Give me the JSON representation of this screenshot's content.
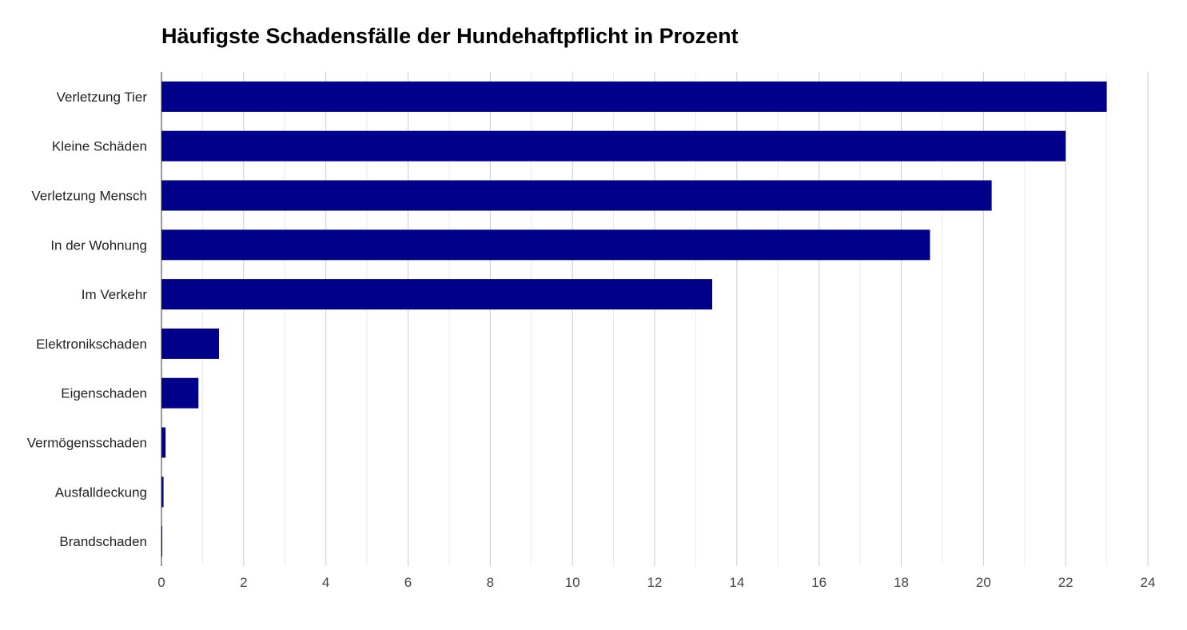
{
  "chart_data": {
    "type": "bar",
    "orientation": "horizontal",
    "title": "Häufigste Schadensfälle der Hundehaftpflicht in Prozent",
    "xlabel": "",
    "ylabel": "",
    "categories": [
      "Verletzung Tier",
      "Kleine Schäden",
      "Verletzung Mensch",
      "In der Wohnung",
      "Im Verkehr",
      "Elektronikschaden",
      "Eigenschaden",
      "Vermögensschaden",
      "Ausfalldeckung",
      "Brandschaden"
    ],
    "values": [
      23.0,
      22.0,
      20.2,
      18.7,
      13.4,
      1.4,
      0.9,
      0.1,
      0.05,
      0.02
    ],
    "xlim": [
      0,
      24
    ],
    "xticks": [
      "0",
      "2",
      "4",
      "6",
      "8",
      "10",
      "12",
      "14",
      "16",
      "18",
      "20",
      "22",
      "24"
    ],
    "grid": true,
    "legend": "none",
    "colors": {
      "bar": "#00008b",
      "grid_major": "#cccccc",
      "grid_minor": "#ebebeb",
      "axis": "#333333"
    }
  }
}
